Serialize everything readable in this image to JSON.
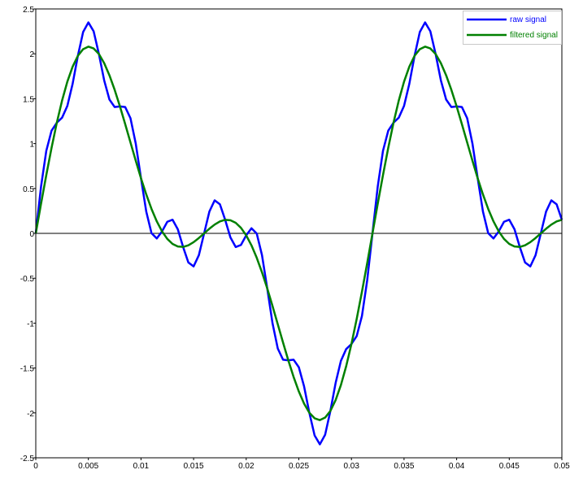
{
  "chart_data": {
    "type": "line",
    "title": "",
    "xlabel": "",
    "ylabel": "",
    "xlim": [
      0,
      0.05
    ],
    "ylim": [
      -2.5,
      2.5
    ],
    "grid": false,
    "zero_line": true,
    "legend_position": "top-right",
    "x_ticks": [
      0,
      0.005,
      0.01,
      0.015,
      0.02,
      0.025,
      0.03,
      0.035,
      0.04,
      0.045,
      0.05
    ],
    "x_tick_labels": [
      "0",
      "0.005",
      "0.01",
      "0.015",
      "0.02",
      "0.025",
      "0.03",
      "0.035",
      "0.04",
      "0.045",
      "0.05"
    ],
    "y_ticks": [
      -2.5,
      -2,
      -1.5,
      -1,
      -0.5,
      0,
      0.5,
      1,
      1.5,
      2,
      2.5
    ],
    "y_tick_labels": [
      "-2.5",
      "-2",
      "-1.5",
      "-1",
      "-0.5",
      "0",
      "0.5",
      "1",
      "1.5",
      "2",
      "2.5"
    ],
    "x": [
      0,
      0.0005,
      0.001,
      0.0015,
      0.002,
      0.0025,
      0.003,
      0.0035,
      0.004,
      0.0045,
      0.005,
      0.0055,
      0.006,
      0.0065,
      0.007,
      0.0075,
      0.008,
      0.0085,
      0.009,
      0.0095,
      0.01,
      0.0105,
      0.011,
      0.0115,
      0.012,
      0.0125,
      0.013,
      0.0135,
      0.014,
      0.0145,
      0.015,
      0.0155,
      0.016,
      0.0165,
      0.017,
      0.0175,
      0.018,
      0.0185,
      0.019,
      0.0195,
      0.02,
      0.0205,
      0.021,
      0.0215,
      0.022,
      0.0225,
      0.023,
      0.0235,
      0.024,
      0.0245,
      0.025,
      0.0255,
      0.026,
      0.0265,
      0.027,
      0.0275,
      0.028,
      0.0285,
      0.029,
      0.0295,
      0.03,
      0.0305,
      0.031,
      0.0315,
      0.032,
      0.0325,
      0.033,
      0.0335,
      0.034,
      0.0345,
      0.035,
      0.0355,
      0.036,
      0.0365,
      0.037,
      0.0375,
      0.038,
      0.0385,
      0.039,
      0.0395,
      0.04,
      0.0405,
      0.041,
      0.0415,
      0.042,
      0.0425,
      0.043,
      0.0435,
      0.044,
      0.0445,
      0.045,
      0.0455,
      0.046,
      0.0465,
      0.047,
      0.0475,
      0.048,
      0.0485,
      0.049,
      0.0495,
      0.05
    ],
    "series": [
      {
        "name": "raw signal",
        "color": "#0000ff",
        "values": [
          0,
          0.521,
          0.92,
          1.144,
          1.233,
          1.289,
          1.42,
          1.665,
          1.978,
          2.243,
          2.35,
          2.251,
          1.998,
          1.705,
          1.491,
          1.407,
          1.414,
          1.407,
          1.283,
          1.001,
          0.614,
          0.243,
          0.002,
          -0.057,
          0.022,
          0.129,
          0.152,
          0.045,
          -0.151,
          -0.324,
          -0.368,
          -0.243,
          0,
          0.243,
          0.368,
          0.324,
          0.151,
          -0.045,
          -0.152,
          -0.129,
          -0.022,
          0.057,
          -0.002,
          -0.243,
          -0.614,
          -1.001,
          -1.283,
          -1.407,
          -1.414,
          -1.407,
          -1.491,
          -1.705,
          -1.998,
          -2.251,
          -2.35,
          -2.243,
          -1.978,
          -1.665,
          -1.42,
          -1.289,
          -1.233,
          -1.144,
          -0.92,
          -0.521,
          0,
          0.521,
          0.92,
          1.144,
          1.233,
          1.289,
          1.42,
          1.665,
          1.978,
          2.243,
          2.35,
          2.251,
          1.998,
          1.705,
          1.491,
          1.407,
          1.414,
          1.407,
          1.283,
          1.001,
          0.614,
          0.243,
          0.002,
          -0.057,
          0.022,
          0.129,
          0.152,
          0.045,
          -0.151,
          -0.324,
          -0.368,
          -0.243,
          0,
          0.243,
          0.368,
          0.324,
          0.151
        ]
      },
      {
        "name": "filtered signal",
        "color": "#008000",
        "values": [
          0,
          0.33,
          0.65,
          0.953,
          1.233,
          1.48,
          1.69,
          1.856,
          1.978,
          2.052,
          2.08,
          2.06,
          1.998,
          1.896,
          1.761,
          1.598,
          1.414,
          1.216,
          1.013,
          0.81,
          0.614,
          0.434,
          0.272,
          0.134,
          0.022,
          -0.062,
          -0.118,
          -0.146,
          -0.151,
          -0.133,
          -0.098,
          -0.052,
          0,
          0.052,
          0.098,
          0.133,
          0.151,
          0.146,
          0.118,
          0.062,
          -0.022,
          -0.134,
          -0.272,
          -0.434,
          -0.614,
          -0.81,
          -1.013,
          -1.216,
          -1.414,
          -1.598,
          -1.761,
          -1.896,
          -1.998,
          -2.06,
          -2.08,
          -2.052,
          -1.978,
          -1.856,
          -1.69,
          -1.48,
          -1.233,
          -0.953,
          -0.65,
          -0.33,
          0,
          0.33,
          0.65,
          0.953,
          1.233,
          1.48,
          1.69,
          1.856,
          1.978,
          2.052,
          2.08,
          2.06,
          1.998,
          1.896,
          1.761,
          1.598,
          1.414,
          1.216,
          1.013,
          0.81,
          0.614,
          0.434,
          0.272,
          0.134,
          0.022,
          -0.062,
          -0.118,
          -0.146,
          -0.151,
          -0.133,
          -0.098,
          -0.052,
          0,
          0.052,
          0.098,
          0.133,
          0.151
        ]
      }
    ]
  }
}
